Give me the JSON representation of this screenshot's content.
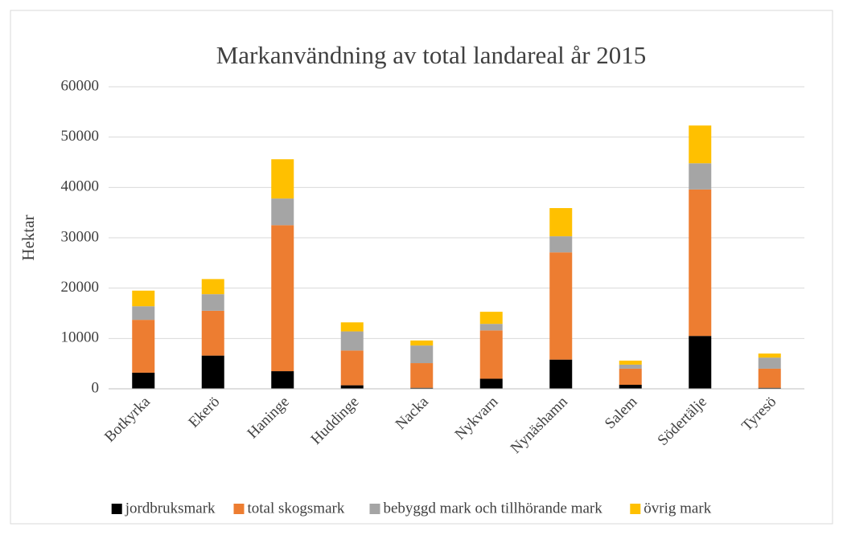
{
  "chart_data": {
    "type": "stacked_bar",
    "title": "Markanvändning av total landareal år 2015",
    "y_label": "Hektar",
    "categories": [
      "Botkyrka",
      "Ekerö",
      "Haninge",
      "Huddinge",
      "Nacka",
      "Nykvarn",
      "Nynäshamn",
      "Salem",
      "Södertälje",
      "Tyresö"
    ],
    "series": [
      {
        "name": "jordbruksmark",
        "color": "#000000",
        "values": [
          3200,
          6600,
          3500,
          700,
          200,
          2000,
          5800,
          800,
          10500,
          200
        ]
      },
      {
        "name": "total skogsmark",
        "color": "#ed7d31",
        "values": [
          10500,
          8900,
          29000,
          6900,
          4900,
          9600,
          21300,
          3200,
          29100,
          3800
        ]
      },
      {
        "name": "bebyggd mark och tillhörande mark",
        "color": "#a5a5a5",
        "values": [
          2700,
          3300,
          5300,
          3800,
          3500,
          1300,
          3200,
          800,
          5200,
          2200
        ]
      },
      {
        "name": "övrig mark",
        "color": "#ffc000",
        "values": [
          3100,
          3000,
          7800,
          1800,
          1000,
          2400,
          5600,
          800,
          7500,
          800
        ]
      }
    ],
    "ylim": [
      0,
      60000
    ],
    "yticks": [
      0,
      10000,
      20000,
      30000,
      40000,
      50000,
      60000
    ],
    "grid": true,
    "legend": "bottom"
  }
}
